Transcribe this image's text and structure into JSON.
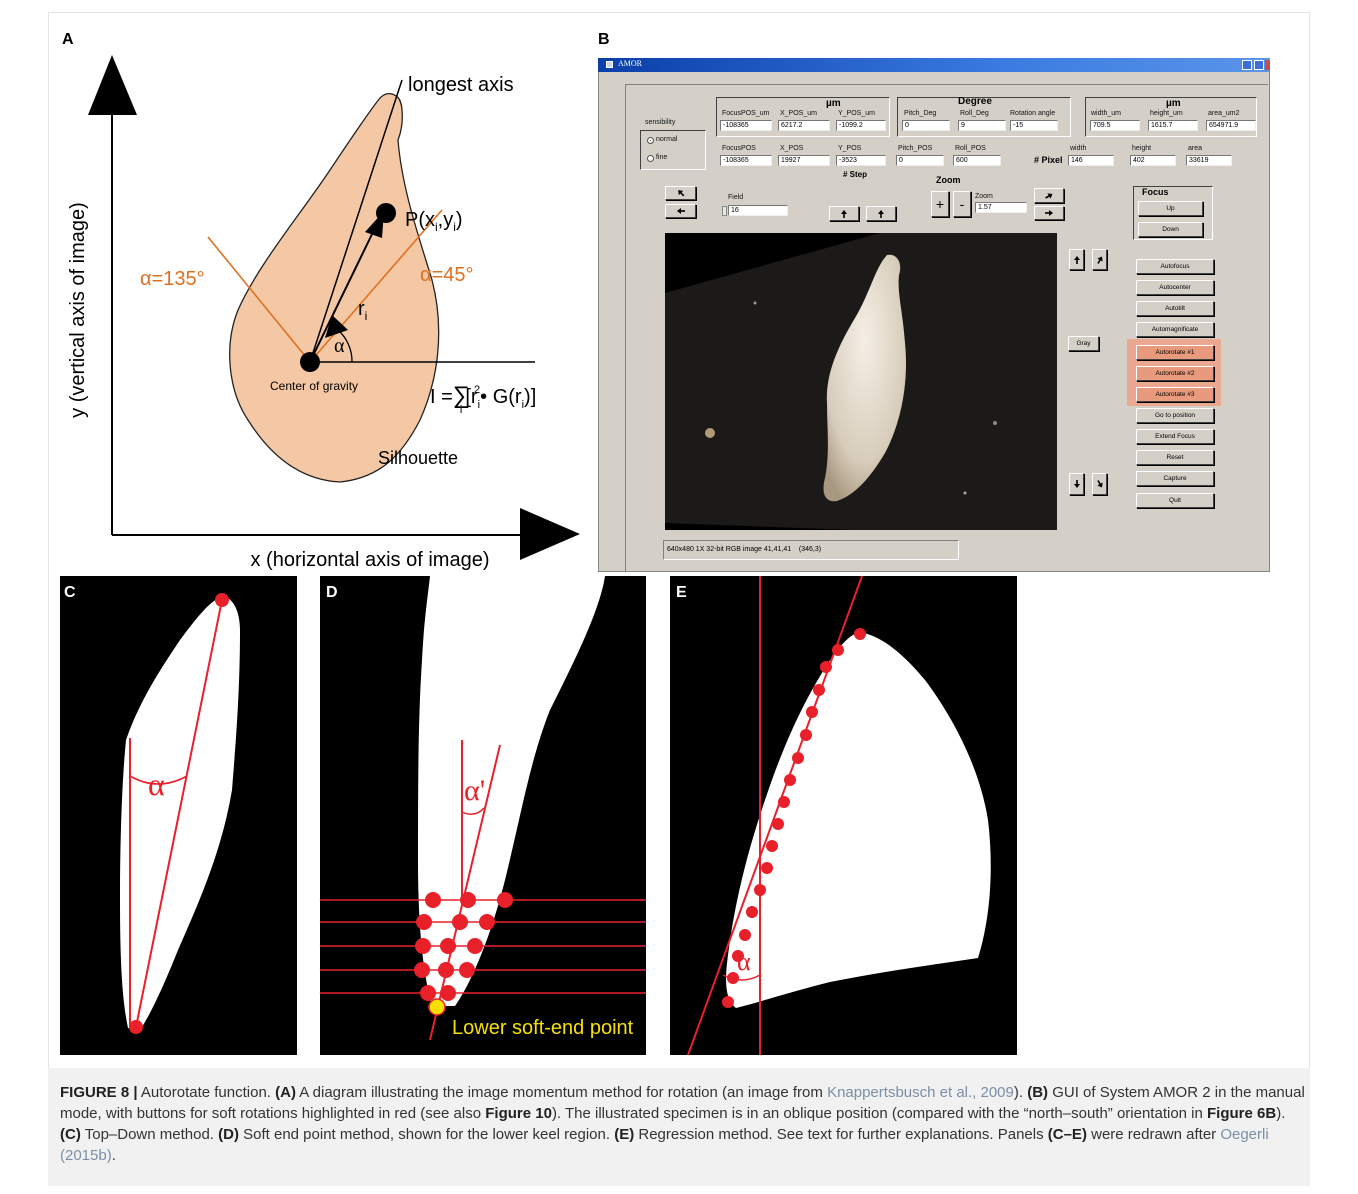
{
  "panel_a": {
    "letter": "A",
    "longest_axis": "longest axis",
    "point": [
      "P(x",
      "i",
      ",y",
      "i",
      ")"
    ],
    "alpha_135": "α=135°",
    "alpha_45": "α=45°",
    "radius": [
      "r",
      "i"
    ],
    "alpha": "α",
    "center": "Center of gravity",
    "formula": [
      "I =",
      "∑",
      "i",
      "[r",
      "i",
      "2",
      "• G(r",
      "i",
      ")]"
    ],
    "silhouette": "Silhouette",
    "y_axis": "y  (vertical axis of image)",
    "x_axis": "x  (horizontal axis of image)"
  },
  "panel_b": {
    "letter": "B",
    "window_title": "AMOR",
    "group_headers": [
      "µm",
      "Degree",
      "µm"
    ],
    "fields": [
      {
        "label": "FocusPOS_um",
        "value": -108365
      },
      {
        "label": "X_POS_um",
        "value": 6217.2
      },
      {
        "label": "Y_POS_um",
        "value": -1099.2
      },
      {
        "label": "Pitch_Deg",
        "value": 0
      },
      {
        "label": "Roll_Deg",
        "value": 9
      },
      {
        "label": "Rotation angle",
        "value": -15
      },
      {
        "label": "width_um",
        "value": 709.5
      },
      {
        "label": "height_um",
        "value": 1615.7
      },
      {
        "label": "area_um2",
        "value": 654971.9
      },
      {
        "label": "FocusPOS",
        "value": -108365
      },
      {
        "label": "X_POS",
        "value": 19927
      },
      {
        "label": "Y_POS",
        "value": -3523
      },
      {
        "label": "Pitch_POS",
        "value": 0
      },
      {
        "label": "Roll_POS",
        "value": 600
      },
      {
        "label": "width",
        "value": 146
      },
      {
        "label": "height",
        "value": 402
      },
      {
        "label": "area",
        "value": 33619
      },
      {
        "label": "Field",
        "value": 16
      },
      {
        "label": "Zoom",
        "value": 1.57
      }
    ],
    "sensibility": "sensibility",
    "radio": [
      "normal",
      "fine"
    ],
    "step_label": "# Step",
    "pixel_label": "# Pixel",
    "zoom_header": "Zoom",
    "plus": "+",
    "minus": "-",
    "focus_title": "Focus",
    "focus_buttons": [
      "Up",
      "Down"
    ],
    "gray": "Gray",
    "buttons": [
      "Autofocus",
      "Autocenter",
      "Autotilt",
      "Automagnificate",
      "Autorotate #1",
      "Autorotate #2",
      "Autorotate #3",
      "Go to position",
      "Extend Focus",
      "Reset",
      "Capture",
      "Quit"
    ],
    "status": "640x480 1X 32-bit RGB image 41,41,41    (346,3)"
  },
  "panel_c": {
    "letter": "C",
    "alpha": "α"
  },
  "panel_d": {
    "letter": "D",
    "alpha": "α'",
    "label": "Lower soft-end point"
  },
  "panel_e": {
    "letter": "E",
    "alpha": "α"
  },
  "caption": [
    "FIGURE 8 |",
    " Autorotate function. ",
    "(A)",
    " A diagram illustrating the image momentum method for rotation (an image from ",
    "Knappertsbusch et al., 2009",
    "). ",
    "(B)",
    " GUI of System AMOR 2 in the manual mode, with buttons for soft rotations highlighted in red (see also ",
    "Figure 10",
    "). The illustrated specimen is in an oblique position (compared with the “north–south” orientation in ",
    "Figure 6B",
    "). ",
    "(C)",
    " Top–Down method. ",
    "(D)",
    " Soft end point method, shown for the lower keel region. ",
    "(E)",
    " Regression method. See text for further explanations. Panels ",
    "(C–E)",
    " were redrawn after ",
    "Oegerli (2015b)",
    "."
  ]
}
